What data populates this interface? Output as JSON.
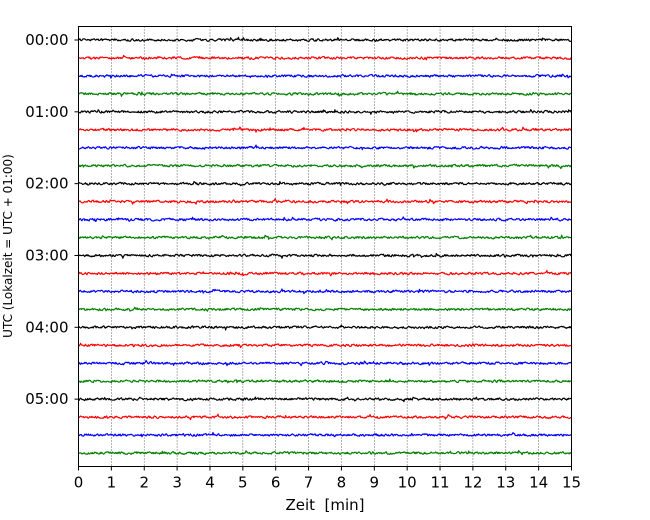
{
  "chart_data": {
    "type": "line",
    "title": "",
    "xlabel": "Zeit  [min]",
    "ylabel": "UTC (Lokalzeit = UTC + 01:00)",
    "xlim": [
      0,
      15
    ],
    "x_ticks": [
      0,
      1,
      2,
      3,
      4,
      5,
      6,
      7,
      8,
      9,
      10,
      11,
      12,
      13,
      14,
      15
    ],
    "y_tick_labels": [
      "00:00",
      "01:00",
      "02:00",
      "03:00",
      "04:00",
      "05:00"
    ],
    "trace_interval_minutes": 15,
    "trace_count": 24,
    "trace_colors": [
      "#000000",
      "#ff0000",
      "#0000ff",
      "#008000"
    ],
    "vertical_grid": "dotted",
    "traces": [
      {
        "start": "00:00",
        "color": "#000000"
      },
      {
        "start": "00:15",
        "color": "#ff0000"
      },
      {
        "start": "00:30",
        "color": "#0000ff"
      },
      {
        "start": "00:45",
        "color": "#008000"
      },
      {
        "start": "01:00",
        "color": "#000000"
      },
      {
        "start": "01:15",
        "color": "#ff0000"
      },
      {
        "start": "01:30",
        "color": "#0000ff"
      },
      {
        "start": "01:45",
        "color": "#008000"
      },
      {
        "start": "02:00",
        "color": "#000000"
      },
      {
        "start": "02:15",
        "color": "#ff0000"
      },
      {
        "start": "02:30",
        "color": "#0000ff"
      },
      {
        "start": "02:45",
        "color": "#008000"
      },
      {
        "start": "03:00",
        "color": "#000000"
      },
      {
        "start": "03:15",
        "color": "#ff0000"
      },
      {
        "start": "03:30",
        "color": "#0000ff"
      },
      {
        "start": "03:45",
        "color": "#008000"
      },
      {
        "start": "04:00",
        "color": "#000000"
      },
      {
        "start": "04:15",
        "color": "#ff0000"
      },
      {
        "start": "04:30",
        "color": "#0000ff"
      },
      {
        "start": "04:45",
        "color": "#008000"
      },
      {
        "start": "05:00",
        "color": "#000000"
      },
      {
        "start": "05:15",
        "color": "#ff0000"
      },
      {
        "start": "05:30",
        "color": "#0000ff"
      },
      {
        "start": "05:45",
        "color": "#008000"
      }
    ]
  }
}
